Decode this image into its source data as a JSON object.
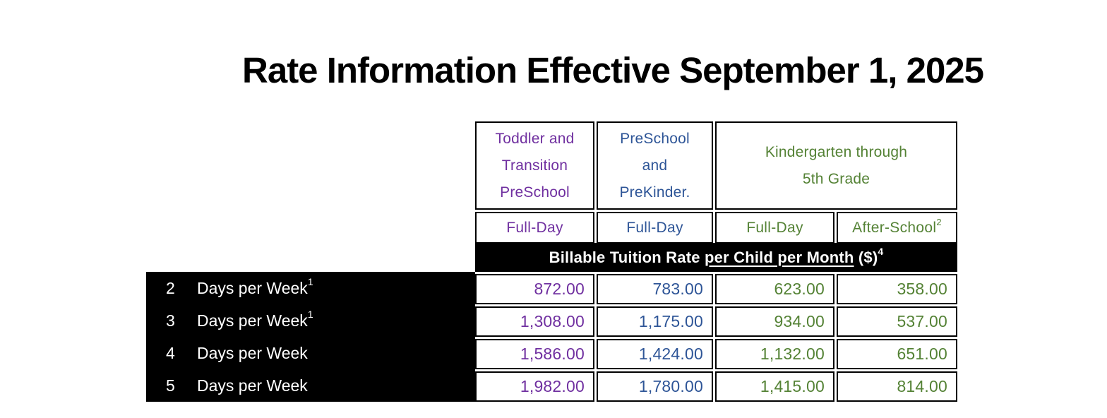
{
  "title": "Rate Information Effective September 1, 2025",
  "colors": {
    "purple": "#7030A0",
    "blue": "#2E5597",
    "green": "#548235",
    "black": "#000000",
    "white": "#ffffff"
  },
  "table": {
    "column_groups": [
      {
        "label": "Toddler and\nTransition\nPreSchool"
      },
      {
        "label": "PreSchool\nand\nPreKinder."
      },
      {
        "label": "Kindergarten through\n5th Grade"
      }
    ],
    "subheaders": [
      {
        "label": "Full-Day",
        "sup": ""
      },
      {
        "label": "Full-Day",
        "sup": ""
      },
      {
        "label": "Full-Day",
        "sup": ""
      },
      {
        "label": "After-School",
        "sup": "2"
      }
    ],
    "band": {
      "prefix": "Billable Tuition Rate ",
      "underlined": "per Child per Month",
      "suffix": " ($)",
      "sup": "4"
    },
    "rows": [
      {
        "num": "2",
        "label": "Days per Week",
        "sup": "1",
        "values": [
          "872.00",
          "783.00",
          "623.00",
          "358.00"
        ]
      },
      {
        "num": "3",
        "label": "Days per Week",
        "sup": "1",
        "values": [
          "1,308.00",
          "1,175.00",
          "934.00",
          "537.00"
        ]
      },
      {
        "num": "4",
        "label": "Days per Week",
        "sup": "",
        "values": [
          "1,586.00",
          "1,424.00",
          "1,132.00",
          "651.00"
        ]
      },
      {
        "num": "5",
        "label": "Days per Week",
        "sup": "",
        "values": [
          "1,982.00",
          "1,780.00",
          "1,415.00",
          "814.00"
        ]
      }
    ]
  }
}
